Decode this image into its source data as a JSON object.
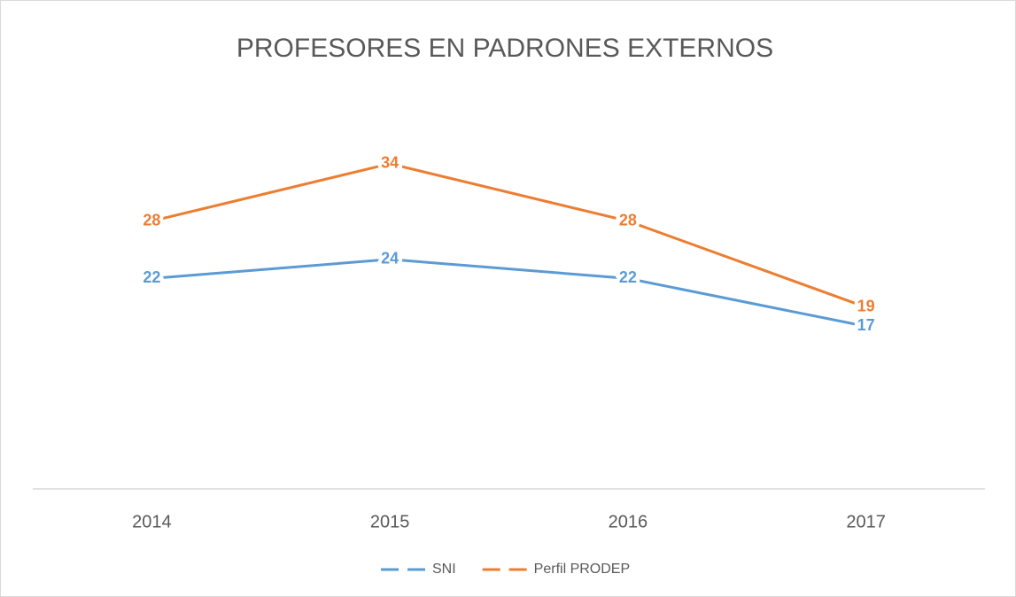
{
  "chart_data": {
    "type": "line",
    "title": "PROFESORES EN PADRONES EXTERNOS",
    "categories": [
      "2014",
      "2015",
      "2016",
      "2017"
    ],
    "series": [
      {
        "name": "SNI",
        "color": "#5b9bd5",
        "values": [
          22,
          24,
          22,
          17
        ]
      },
      {
        "name": "Perfil PRODEP",
        "color": "#ed7d31",
        "values": [
          28,
          34,
          28,
          19
        ]
      }
    ],
    "ylim": [
      0,
      40
    ]
  }
}
